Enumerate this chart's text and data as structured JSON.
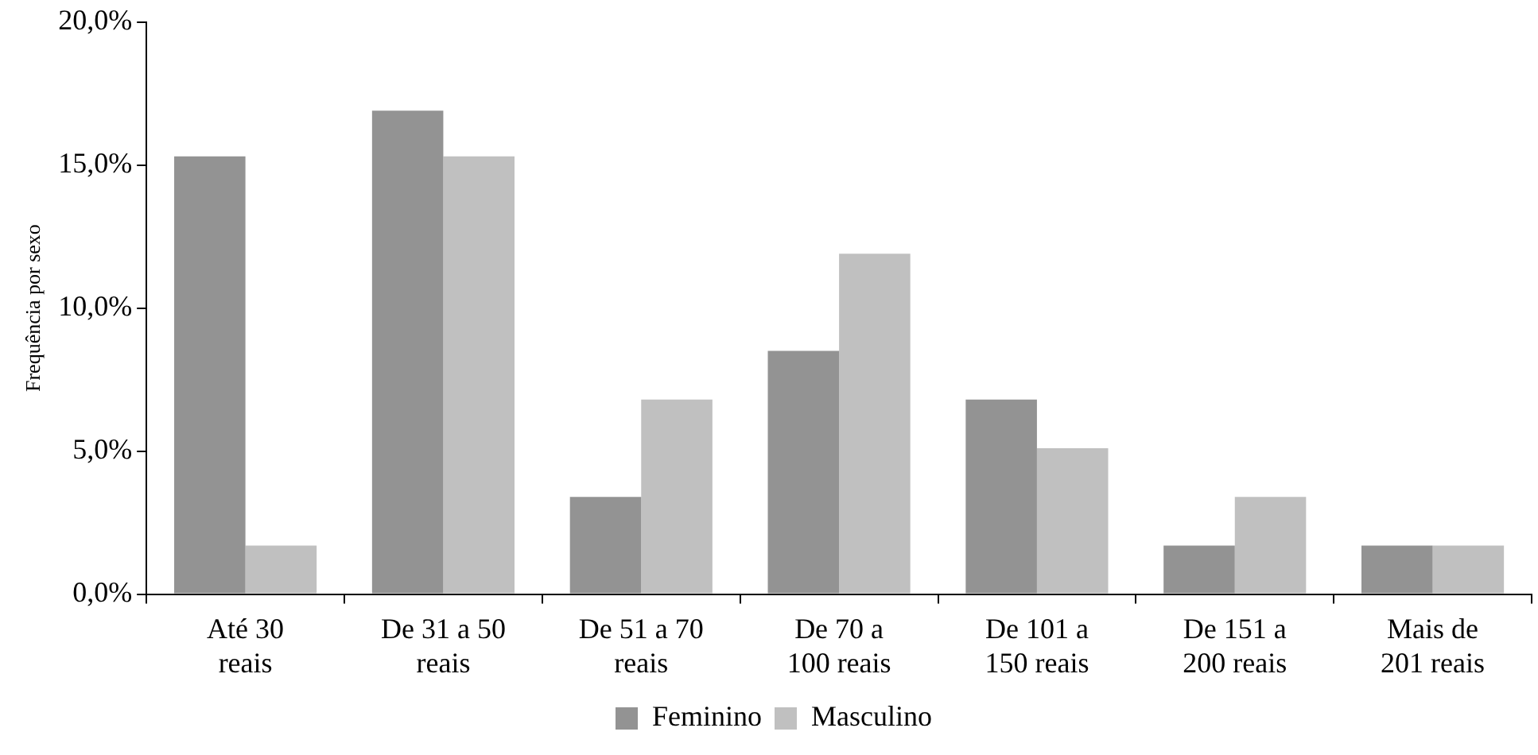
{
  "chart_data": {
    "type": "bar",
    "ylabel": "Frequência por sexo",
    "categories": [
      "Até 30 reais",
      "De 31 a 50 reais",
      "De 51 a 70 reais",
      "De 70 a 100 reais",
      "De 101 a 150 reais",
      "De 151 a 200 reais",
      "Mais de 201 reais"
    ],
    "series": [
      {
        "name": "Feminino",
        "color": "#939393",
        "values": [
          15.3,
          16.9,
          3.4,
          8.5,
          6.8,
          1.7,
          1.7
        ]
      },
      {
        "name": "Masculino",
        "color": "#c0c0c0",
        "values": [
          1.7,
          15.3,
          6.8,
          11.9,
          5.1,
          3.4,
          1.7
        ]
      }
    ],
    "ylim": [
      0,
      20
    ],
    "yticks": [
      {
        "value": 0,
        "label": "0,0%"
      },
      {
        "value": 5,
        "label": "5,0%"
      },
      {
        "value": 10,
        "label": "10,0%"
      },
      {
        "value": 15,
        "label": "15,0%"
      },
      {
        "value": 20,
        "label": "20,0%"
      }
    ],
    "grid": false,
    "legend": "bottom"
  }
}
